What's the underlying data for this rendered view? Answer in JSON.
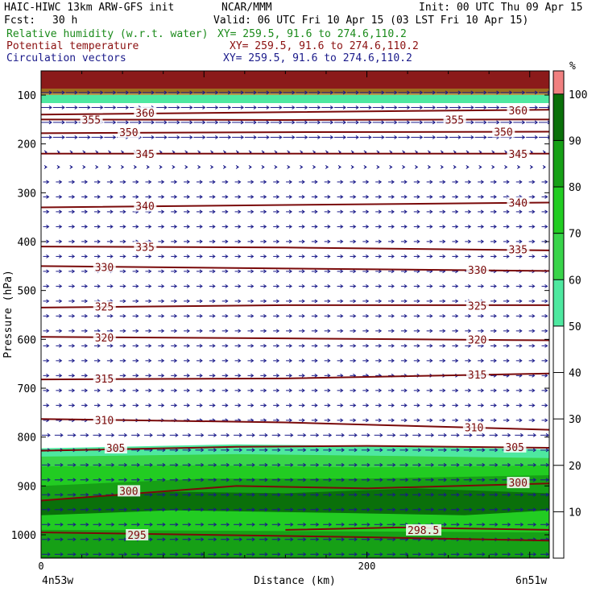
{
  "header": {
    "model": "HAIC-HIWC 13km ARW-GFS init",
    "org": "NCAR/MMM",
    "init": "Init: 00 UTC Thu 09 Apr 15",
    "fcst_label": "Fcst:",
    "fcst_value": "30 h",
    "valid": "Valid: 06 UTC Fri 10 Apr 15 (03 LST Fri 10 Apr 15)",
    "fields": [
      {
        "name": "Relative humidity (w.r.t. water)",
        "xy": "XY= 259.5, 91.6 to 274.6,110.2",
        "color": "#1a8a1a"
      },
      {
        "name": "Potential temperature",
        "xy": "XY= 259.5, 91.6 to 274.6,110.2",
        "color": "#8b1010"
      },
      {
        "name": "Circulation vectors",
        "xy": "XY= 259.5, 91.6 to 274.6,110.2",
        "color": "#1a1a8a"
      }
    ]
  },
  "chart_data": {
    "type": "heatmap",
    "ylabel": "Pressure (hPa)",
    "xlabel": "Distance (km)",
    "x_left_label": "4n53w",
    "x_right_label": "6n51w",
    "x_ticks": [
      {
        "value": 0,
        "label": "0"
      },
      {
        "value": 200,
        "label": "200"
      }
    ],
    "xlim": [
      0,
      312
    ],
    "y_ticks": [
      100,
      200,
      300,
      400,
      500,
      600,
      700,
      800,
      900,
      1000
    ],
    "ylim_hpa": [
      1045,
      50
    ],
    "colorbar": {
      "unit": "%",
      "ticks": [
        10,
        20,
        30,
        40,
        50,
        60,
        70,
        80,
        90,
        100
      ],
      "bands": [
        {
          "from": 0,
          "to": 50,
          "color": "#ffffff"
        },
        {
          "from": 50,
          "to": 60,
          "color": "#4ee8a0"
        },
        {
          "from": 60,
          "to": 70,
          "color": "#39d44a"
        },
        {
          "from": 70,
          "to": 80,
          "color": "#22cc22"
        },
        {
          "from": 80,
          "to": 90,
          "color": "#16a016"
        },
        {
          "from": 90,
          "to": 100,
          "color": "#0a700a"
        },
        {
          "from": 100,
          "to": 105,
          "color": "#f08080"
        }
      ]
    },
    "theta_contours": [
      {
        "label": "295",
        "points": [
          [
            0,
            995
          ],
          [
            100,
            1000
          ],
          [
            200,
            1005
          ],
          [
            312,
            1012
          ]
        ],
        "label_at": [
          53,
          1000
        ]
      },
      {
        "label": "298.5",
        "points": [
          [
            150,
            990
          ],
          [
            220,
            985
          ],
          [
            312,
            990
          ]
        ],
        "label_at": [
          225,
          990
        ]
      },
      {
        "label": "300",
        "points": [
          [
            0,
            930
          ],
          [
            60,
            915
          ],
          [
            120,
            900
          ],
          [
            200,
            905
          ],
          [
            312,
            895
          ]
        ],
        "label_at": [
          48,
          910
        ],
        "label_at2": [
          287,
          893
        ]
      },
      {
        "label": "305",
        "points": [
          [
            0,
            828
          ],
          [
            120,
            820
          ],
          [
            200,
            818
          ],
          [
            312,
            822
          ]
        ],
        "label_at": [
          40,
          822
        ],
        "label_at2": [
          285,
          820
        ]
      },
      {
        "label": "310",
        "points": [
          [
            0,
            763
          ],
          [
            150,
            770
          ],
          [
            312,
            785
          ]
        ],
        "label_at": [
          33,
          765
        ],
        "label_at2": [
          260,
          780
        ]
      },
      {
        "label": "315",
        "points": [
          [
            0,
            682
          ],
          [
            150,
            680
          ],
          [
            312,
            670
          ]
        ],
        "label_at": [
          33,
          680
        ],
        "label_at2": [
          262,
          672
        ]
      },
      {
        "label": "320",
        "points": [
          [
            0,
            595
          ],
          [
            150,
            598
          ],
          [
            312,
            602
          ]
        ],
        "label_at": [
          33,
          596
        ],
        "label_at2": [
          262,
          600
        ]
      },
      {
        "label": "325",
        "points": [
          [
            0,
            535
          ],
          [
            150,
            530
          ],
          [
            312,
            530
          ]
        ],
        "label_at": [
          33,
          533
        ],
        "label_at2": [
          262,
          531
        ]
      },
      {
        "label": "330",
        "points": [
          [
            0,
            450
          ],
          [
            150,
            455
          ],
          [
            312,
            460
          ]
        ],
        "label_at": [
          33,
          452
        ],
        "label_at2": [
          262,
          458
        ]
      },
      {
        "label": "335",
        "points": [
          [
            0,
            410
          ],
          [
            150,
            412
          ],
          [
            312,
            418
          ]
        ],
        "label_at": [
          58,
          411
        ],
        "label_at2": [
          287,
          416
        ]
      },
      {
        "label": "340",
        "points": [
          [
            0,
            330
          ],
          [
            150,
            325
          ],
          [
            312,
            320
          ]
        ],
        "label_at": [
          58,
          327
        ],
        "label_at2": [
          287,
          320
        ]
      },
      {
        "label": "345",
        "points": [
          [
            0,
            220
          ],
          [
            150,
            220
          ],
          [
            312,
            220
          ]
        ],
        "label_at": [
          58,
          220
        ],
        "label_at2": [
          287,
          220
        ]
      },
      {
        "label": "350",
        "points": [
          [
            0,
            178
          ],
          [
            150,
            176
          ],
          [
            312,
            175
          ]
        ],
        "label_at": [
          48,
          176
        ],
        "label_at2": [
          278,
          175
        ]
      },
      {
        "label": "355",
        "points": [
          [
            0,
            150
          ],
          [
            150,
            151
          ],
          [
            312,
            150
          ]
        ],
        "label_at": [
          25,
          150
        ],
        "label_at2": [
          248,
          150
        ]
      },
      {
        "label": "360",
        "points": [
          [
            0,
            140
          ],
          [
            150,
            135
          ],
          [
            312,
            130
          ]
        ],
        "label_at": [
          58,
          136
        ],
        "label_at2": [
          287,
          131
        ]
      }
    ]
  }
}
